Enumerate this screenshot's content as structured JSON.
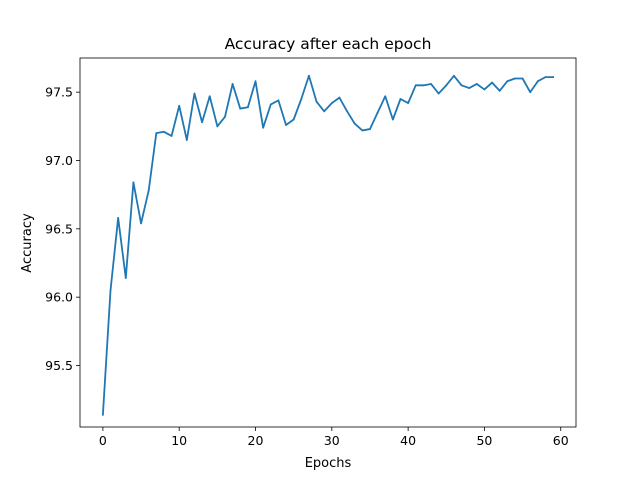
{
  "chart_data": {
    "type": "line",
    "title": "Accuracy after each epoch",
    "xlabel": "Epochs",
    "ylabel": "Accuracy",
    "xlim": [
      -3,
      62
    ],
    "ylim": [
      95.05,
      97.75
    ],
    "xticks": [
      0,
      10,
      20,
      30,
      40,
      50,
      60
    ],
    "xtick_labels": [
      "0",
      "10",
      "20",
      "30",
      "40",
      "50",
      "60"
    ],
    "yticks": [
      95.5,
      96.0,
      96.5,
      97.0,
      97.5
    ],
    "ytick_labels": [
      "95.5",
      "96.0",
      "96.5",
      "97.0",
      "97.5"
    ],
    "grid": false,
    "series": [
      {
        "color": "#1f77b4",
        "x": [
          0,
          1,
          2,
          3,
          4,
          5,
          6,
          7,
          8,
          9,
          10,
          11,
          12,
          13,
          14,
          15,
          16,
          17,
          18,
          19,
          20,
          21,
          22,
          23,
          24,
          25,
          26,
          27,
          28,
          29,
          30,
          31,
          32,
          33,
          34,
          35,
          36,
          37,
          38,
          39,
          40,
          41,
          42,
          43,
          44,
          45,
          46,
          47,
          48,
          49,
          50,
          51,
          52,
          53,
          54,
          55,
          56,
          57,
          58,
          59
        ],
        "values": [
          95.14,
          96.05,
          96.58,
          96.14,
          96.84,
          96.54,
          96.78,
          97.2,
          97.21,
          97.18,
          97.4,
          97.15,
          97.49,
          97.28,
          97.47,
          97.25,
          97.32,
          97.56,
          97.38,
          97.39,
          97.58,
          97.24,
          97.41,
          97.44,
          97.26,
          97.3,
          97.45,
          97.62,
          97.43,
          97.36,
          97.42,
          97.46,
          97.36,
          97.27,
          97.22,
          97.23,
          97.35,
          97.47,
          97.3,
          97.45,
          97.42,
          97.55,
          97.55,
          97.56,
          97.49,
          97.55,
          97.62,
          97.55,
          97.53,
          97.56,
          97.52,
          97.57,
          97.51,
          97.58,
          97.6,
          97.6,
          97.5,
          97.58,
          97.61,
          97.61
        ]
      }
    ]
  }
}
